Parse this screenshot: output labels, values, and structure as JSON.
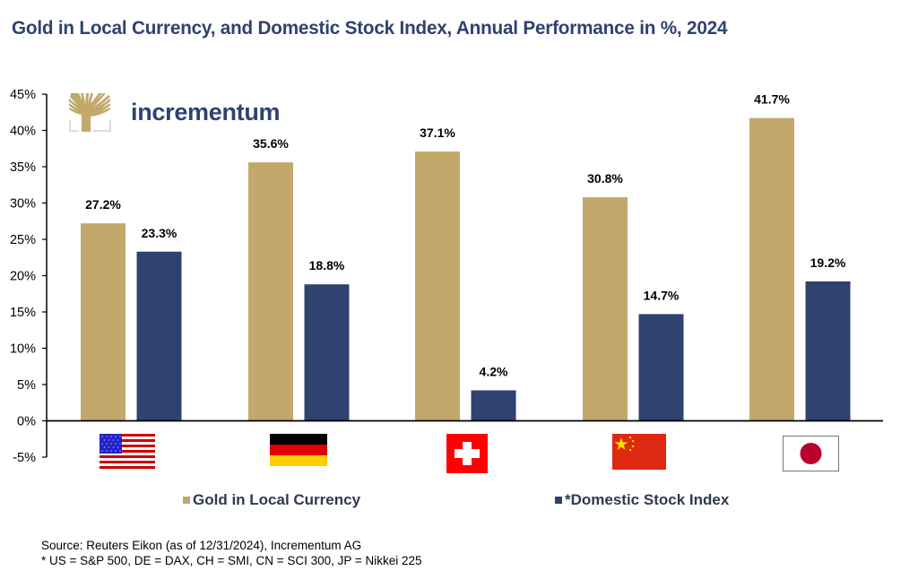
{
  "header": {
    "title": "Gold in Local Currency, and Domestic Stock Index, Annual Performance in %, 2024"
  },
  "logo": {
    "text": "incrementum",
    "icon": "tree-logo-icon"
  },
  "colors": {
    "gold": "#c2a96b",
    "stock": "#2f4270",
    "title": "#2f4270",
    "axis": "#000000"
  },
  "chart_data": {
    "type": "bar",
    "title": "Gold in Local Currency, and Domestic Stock Index, Annual Performance in %, 2024",
    "xlabel": "",
    "ylabel": "",
    "categories": [
      "US",
      "DE",
      "CH",
      "CN",
      "JP"
    ],
    "category_icons": [
      "us-flag-icon",
      "germany-flag-icon",
      "switzerland-flag-icon",
      "china-flag-icon",
      "japan-flag-icon"
    ],
    "series": [
      {
        "name": "Gold in Local Currency",
        "color": "#c2a96b",
        "values": [
          27.2,
          35.6,
          37.1,
          30.8,
          41.7
        ],
        "labels": [
          "27.2%",
          "35.6%",
          "37.1%",
          "30.8%",
          "41.7%"
        ]
      },
      {
        "name": "*Domestic Stock Index",
        "color": "#2f4270",
        "values": [
          23.3,
          18.8,
          4.2,
          14.7,
          19.2
        ],
        "labels": [
          "23.3%",
          "18.8%",
          "4.2%",
          "14.7%",
          "19.2%"
        ]
      }
    ],
    "ylim": [
      -5,
      45
    ],
    "yticks": [
      -5,
      0,
      5,
      10,
      15,
      20,
      25,
      30,
      35,
      40,
      45
    ],
    "ytick_labels": [
      "-5%",
      "0%",
      "5%",
      "10%",
      "15%",
      "20%",
      "25%",
      "30%",
      "35%",
      "40%",
      "45%"
    ],
    "grid": false,
    "legend_position": "bottom"
  },
  "legend": {
    "items": [
      {
        "label": "Gold in Local Currency",
        "color": "#c2a96b"
      },
      {
        "label": "*Domestic Stock Index",
        "color": "#2f4270"
      }
    ]
  },
  "footer": {
    "source": "Source: Reuters Eikon (as of 12/31/2024), Incrementum AG",
    "note": "* US = S&P 500, DE = DAX, CH = SMI, CN = SCI 300, JP = Nikkei 225"
  }
}
